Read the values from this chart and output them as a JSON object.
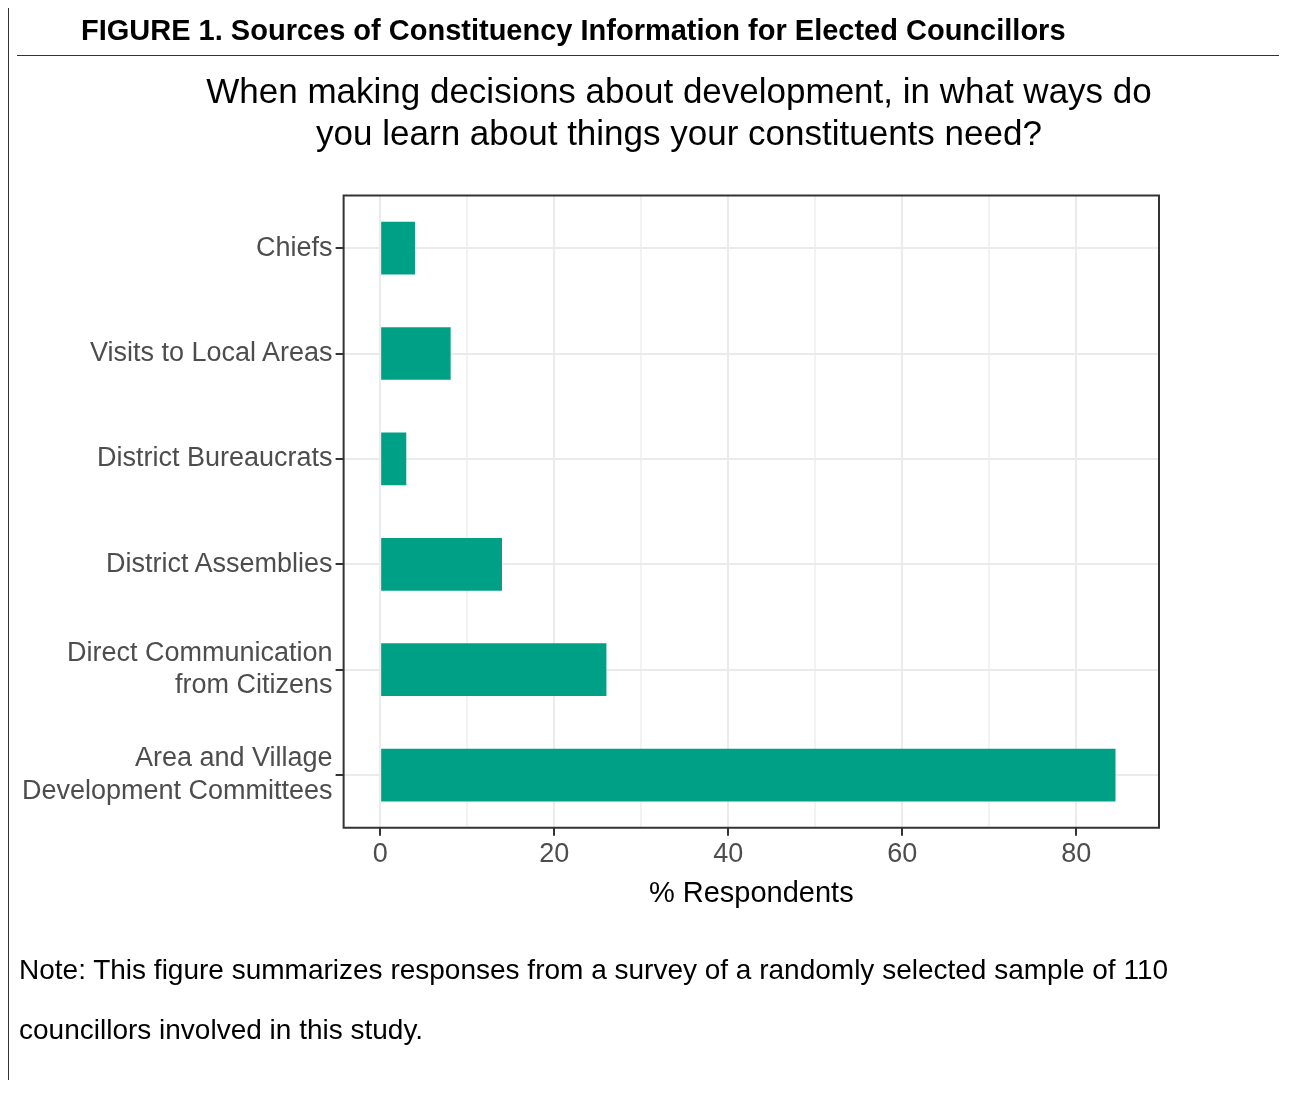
{
  "chart_data": {
    "type": "bar",
    "orientation": "horizontal",
    "title": "FIGURE 1. Sources of Constituency Information for Elected Councillors",
    "subtitle": "When making decisions about development, in what ways do you learn about things your constituents need?",
    "categories": [
      "Chiefs",
      "Visits to Local Areas",
      "District Bureaucrats",
      "District Assemblies",
      "Direct Communication from Citizens",
      "Area and Village Development Committees"
    ],
    "values": [
      4,
      8.1,
      3,
      14,
      26,
      84.5
    ],
    "color": "#00a087",
    "xlim": [
      -4.2,
      89.5
    ],
    "xticks": [
      0,
      {
        "value": 10,
        "label": null
      },
      20,
      {
        "value": 30,
        "label": null
      },
      40,
      {
        "value": 50,
        "label": null
      },
      60,
      {
        "value": 70,
        "label": null
      },
      80
    ],
    "xlabel": "% Respondents",
    "grid": true,
    "legend": false,
    "annotations": [
      "Note: This figure summarizes responses from a survey of a randomly selected sample of 110 councillors involved in this study."
    ]
  }
}
